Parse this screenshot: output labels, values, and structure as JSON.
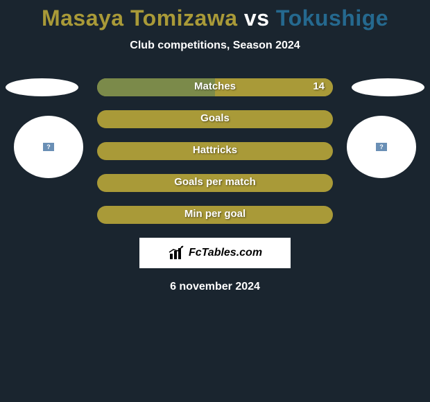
{
  "title": {
    "player1": "Masaya Tomizawa",
    "vs": "vs",
    "player2": "Tokushige",
    "player1_color": "#a99a38",
    "vs_color": "#ffffff",
    "player2_color": "#25698f"
  },
  "subtitle": "Club competitions, Season 2024",
  "colors": {
    "background": "#1a252f",
    "bar_left": "#7b8a4a",
    "bar_right": "#a99a38",
    "bar_empty": "#a99a38",
    "text": "#ffffff"
  },
  "bars": [
    {
      "label": "Matches",
      "left_pct": 50,
      "right_pct": 50,
      "right_value": "14",
      "left_color": "#7b8a4a",
      "right_color": "#a99a38"
    },
    {
      "label": "Goals",
      "left_pct": 0,
      "right_pct": 0,
      "right_value": "",
      "left_color": "#a99a38",
      "right_color": "#a99a38"
    },
    {
      "label": "Hattricks",
      "left_pct": 0,
      "right_pct": 0,
      "right_value": "",
      "left_color": "#a99a38",
      "right_color": "#a99a38"
    },
    {
      "label": "Goals per match",
      "left_pct": 0,
      "right_pct": 0,
      "right_value": "",
      "left_color": "#a99a38",
      "right_color": "#a99a38"
    },
    {
      "label": "Min per goal",
      "left_pct": 0,
      "right_pct": 0,
      "right_value": "",
      "left_color": "#a99a38",
      "right_color": "#a99a38"
    }
  ],
  "logo_text": "FcTables.com",
  "footer_date": "6 november 2024"
}
